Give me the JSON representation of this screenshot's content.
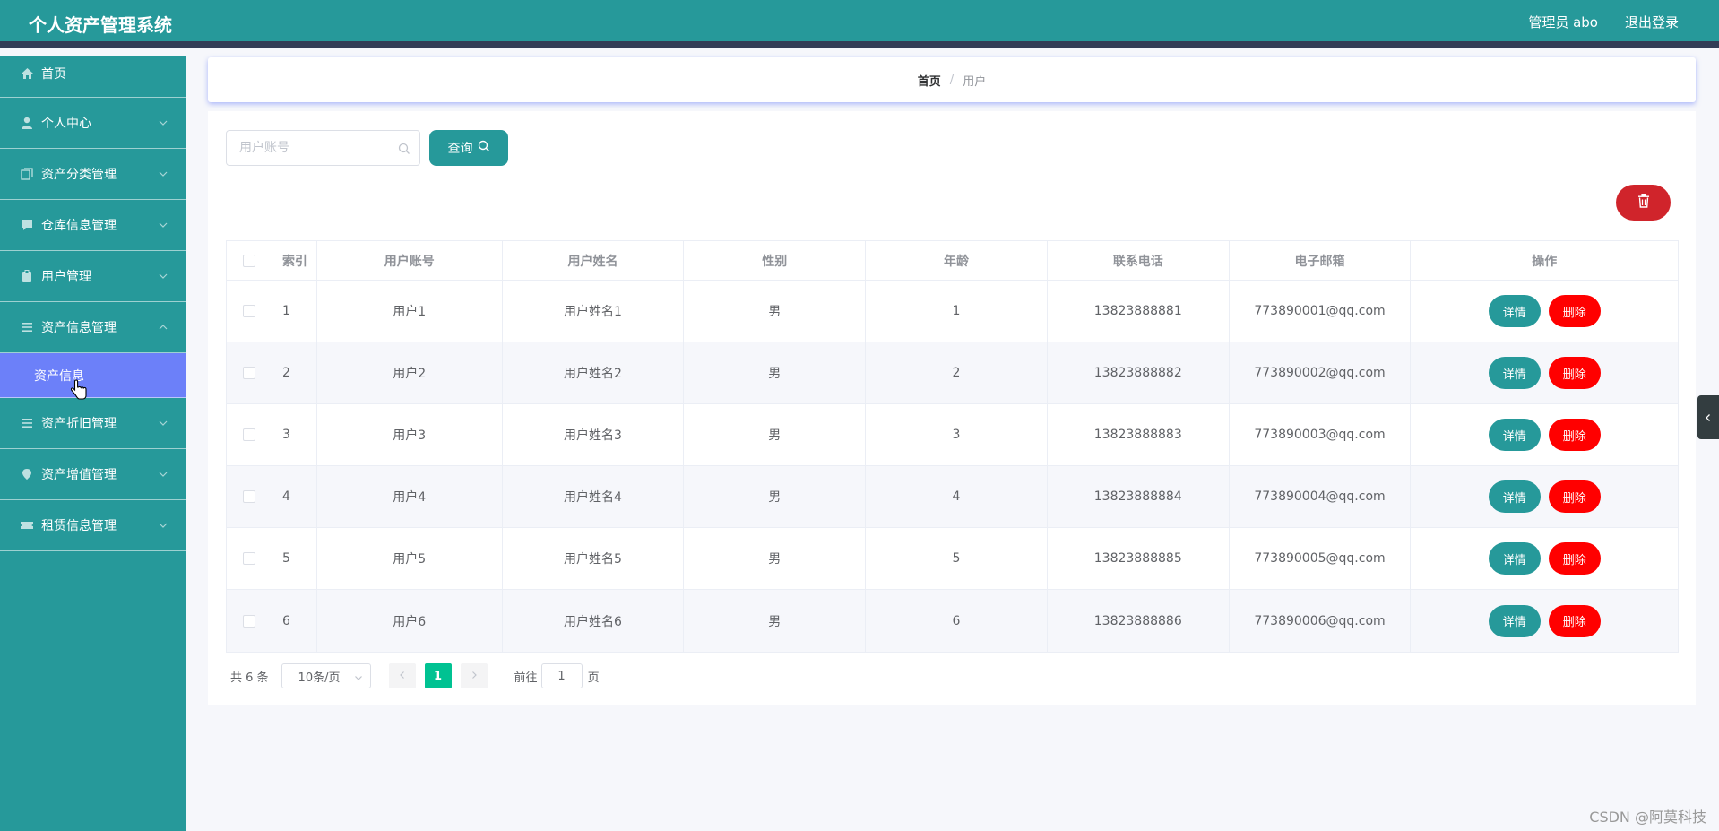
{
  "header": {
    "title": "个人资产管理系统",
    "user_label": "管理员 abo",
    "logout_label": "退出登录"
  },
  "sidebar": {
    "items": [
      {
        "label": "首页",
        "icon": "home-icon",
        "expandable": false
      },
      {
        "label": "个人中心",
        "icon": "user-icon",
        "expandable": true
      },
      {
        "label": "资产分类管理",
        "icon": "copy-icon",
        "expandable": true
      },
      {
        "label": "仓库信息管理",
        "icon": "chat-icon",
        "expandable": true
      },
      {
        "label": "用户管理",
        "icon": "clipboard-icon",
        "expandable": true
      },
      {
        "label": "资产信息管理",
        "icon": "list-icon",
        "expandable": true,
        "expanded": true
      },
      {
        "label": "资产折旧管理",
        "icon": "list-icon",
        "expandable": true
      },
      {
        "label": "资产增值管理",
        "icon": "location-icon",
        "expandable": true
      },
      {
        "label": "租赁信息管理",
        "icon": "ticket-icon",
        "expandable": true
      }
    ],
    "active_sub_item": "资产信息"
  },
  "breadcrumb": {
    "home": "首页",
    "separator": "/",
    "current": "用户"
  },
  "search": {
    "placeholder": "用户账号",
    "value": "",
    "button_label": "查询"
  },
  "table": {
    "columns": [
      "索引",
      "用户账号",
      "用户姓名",
      "性别",
      "年龄",
      "联系电话",
      "电子邮箱",
      "操作"
    ],
    "rows": [
      {
        "index": "1",
        "account": "用户1",
        "name": "用户姓名1",
        "gender": "男",
        "age": "1",
        "phone": "13823888881",
        "email": "773890001@qq.com"
      },
      {
        "index": "2",
        "account": "用户2",
        "name": "用户姓名2",
        "gender": "男",
        "age": "2",
        "phone": "13823888882",
        "email": "773890002@qq.com"
      },
      {
        "index": "3",
        "account": "用户3",
        "name": "用户姓名3",
        "gender": "男",
        "age": "3",
        "phone": "13823888883",
        "email": "773890003@qq.com"
      },
      {
        "index": "4",
        "account": "用户4",
        "name": "用户姓名4",
        "gender": "男",
        "age": "4",
        "phone": "13823888884",
        "email": "773890004@qq.com"
      },
      {
        "index": "5",
        "account": "用户5",
        "name": "用户姓名5",
        "gender": "男",
        "age": "5",
        "phone": "13823888885",
        "email": "773890005@qq.com"
      },
      {
        "index": "6",
        "account": "用户6",
        "name": "用户姓名6",
        "gender": "男",
        "age": "6",
        "phone": "13823888886",
        "email": "773890006@qq.com"
      }
    ],
    "detail_label": "详情",
    "delete_label": "删除"
  },
  "pagination": {
    "total_text": "共 6 条",
    "page_size": "10条/页",
    "current_page": "1",
    "goto_label": "前往",
    "goto_value": "1",
    "page_suffix": "页"
  },
  "watermark": "CSDN @阿莫科技",
  "colors": {
    "primary": "#26999a",
    "header_border": "#333d56",
    "active_menu": "#6c80f9",
    "danger": "#ff0000",
    "delete_all": "#d0242b",
    "page_active": "#00c292"
  }
}
